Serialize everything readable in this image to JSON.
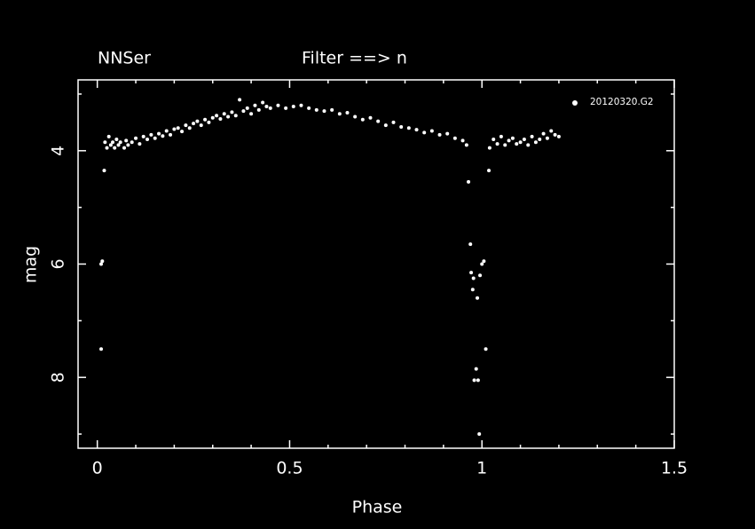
{
  "chart_data": {
    "type": "scatter",
    "title": "NNSer",
    "subtitle": "Filter ==> n",
    "x_label": "Phase",
    "y_label": "mag",
    "xlim": [
      -0.05,
      1.5
    ],
    "ylim": [
      2.75,
      9.25
    ],
    "y_inverted": true,
    "xticks": [
      0,
      0.5,
      1,
      1.5
    ],
    "yticks": [
      4,
      6,
      8
    ],
    "xminorticks": [
      0.1,
      0.2,
      0.3,
      0.4,
      0.6,
      0.7,
      0.8,
      0.9,
      1.1,
      1.2,
      1.3,
      1.4
    ],
    "yminorticks": [
      3,
      5,
      7,
      9
    ],
    "legend": "upper right",
    "series": [
      {
        "name": "20120320.G2",
        "color": "#ffffff",
        "x": [
          0.01,
          0.01,
          0.013,
          0.018,
          0.02,
          0.025,
          0.03,
          0.035,
          0.04,
          0.045,
          0.05,
          0.055,
          0.06,
          0.07,
          0.075,
          0.08,
          0.09,
          0.1,
          0.11,
          0.12,
          0.13,
          0.14,
          0.15,
          0.16,
          0.17,
          0.18,
          0.19,
          0.2,
          0.21,
          0.22,
          0.23,
          0.24,
          0.25,
          0.26,
          0.27,
          0.28,
          0.29,
          0.3,
          0.31,
          0.32,
          0.33,
          0.34,
          0.35,
          0.36,
          0.37,
          0.38,
          0.39,
          0.4,
          0.41,
          0.42,
          0.43,
          0.44,
          0.45,
          0.47,
          0.49,
          0.51,
          0.53,
          0.55,
          0.57,
          0.59,
          0.61,
          0.63,
          0.65,
          0.67,
          0.69,
          0.71,
          0.73,
          0.75,
          0.77,
          0.79,
          0.81,
          0.83,
          0.85,
          0.87,
          0.89,
          0.91,
          0.93,
          0.95,
          0.96,
          0.965,
          0.97,
          0.972,
          0.976,
          0.978,
          0.98,
          0.985,
          0.988,
          0.99,
          0.993,
          0.995,
          1.0,
          1.005,
          1.01,
          1.018,
          1.02,
          1.03,
          1.04,
          1.05,
          1.06,
          1.07,
          1.08,
          1.09,
          1.1,
          1.11,
          1.12,
          1.13,
          1.14,
          1.15,
          1.16,
          1.17,
          1.18,
          1.19,
          1.2
        ],
        "values": [
          7.5,
          6.0,
          5.95,
          4.35,
          3.85,
          3.95,
          3.75,
          3.9,
          3.85,
          3.95,
          3.8,
          3.9,
          3.85,
          3.95,
          3.82,
          3.9,
          3.85,
          3.78,
          3.88,
          3.75,
          3.8,
          3.72,
          3.78,
          3.7,
          3.74,
          3.65,
          3.72,
          3.62,
          3.6,
          3.66,
          3.55,
          3.6,
          3.52,
          3.48,
          3.55,
          3.45,
          3.5,
          3.42,
          3.38,
          3.44,
          3.35,
          3.4,
          3.32,
          3.38,
          3.1,
          3.3,
          3.25,
          3.35,
          3.2,
          3.28,
          3.15,
          3.22,
          3.25,
          3.2,
          3.25,
          3.22,
          3.2,
          3.25,
          3.28,
          3.3,
          3.28,
          3.35,
          3.33,
          3.4,
          3.45,
          3.42,
          3.48,
          3.55,
          3.5,
          3.58,
          3.6,
          3.63,
          3.68,
          3.65,
          3.72,
          3.7,
          3.78,
          3.82,
          3.9,
          4.55,
          5.65,
          6.15,
          6.45,
          6.25,
          8.05,
          7.85,
          6.6,
          8.05,
          9.0,
          6.2,
          6.0,
          5.95,
          7.5,
          4.35,
          3.95,
          3.8,
          3.88,
          3.75,
          3.9,
          3.82,
          3.78,
          3.88,
          3.85,
          3.8,
          3.9,
          3.75,
          3.85,
          3.8,
          3.7,
          3.78,
          3.65,
          3.72,
          3.75
        ]
      }
    ]
  }
}
